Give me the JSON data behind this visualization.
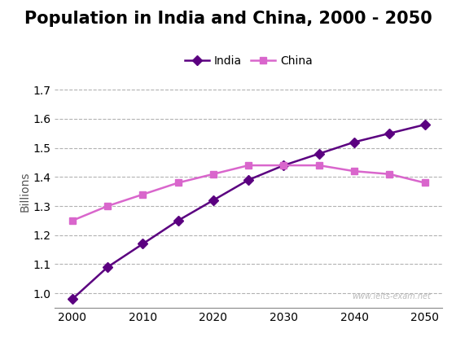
{
  "title": "Population in India and China, 2000 - 2050",
  "ylabel": "Billions",
  "years": [
    2000,
    2005,
    2010,
    2015,
    2020,
    2025,
    2030,
    2035,
    2040,
    2045,
    2050
  ],
  "india": [
    0.98,
    1.09,
    1.17,
    1.25,
    1.32,
    1.39,
    1.44,
    1.48,
    1.52,
    1.55,
    1.58
  ],
  "china": [
    1.25,
    1.3,
    1.34,
    1.38,
    1.41,
    1.44,
    1.44,
    1.44,
    1.42,
    1.41,
    1.38
  ],
  "india_color": "#5b0080",
  "china_color": "#d966cc",
  "india_marker": "D",
  "china_marker": "s",
  "ylim": [
    0.95,
    1.75
  ],
  "yticks": [
    1.0,
    1.1,
    1.2,
    1.3,
    1.4,
    1.5,
    1.6,
    1.7
  ],
  "xticks": [
    2000,
    2010,
    2020,
    2030,
    2040,
    2050
  ],
  "grid_color": "#aaaaaa",
  "background_color": "#ffffff",
  "watermark": "www.ielts-exam.net",
  "title_fontsize": 15,
  "label_fontsize": 10,
  "tick_fontsize": 10,
  "legend_fontsize": 10
}
